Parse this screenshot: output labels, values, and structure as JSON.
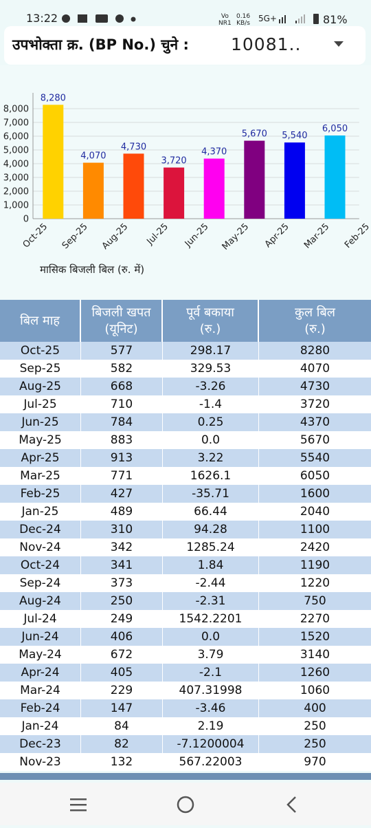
{
  "status_bar": {
    "time": "13:22",
    "network_1": [
      "Vo",
      "NR1"
    ],
    "speed": [
      "0.16",
      "KB/s"
    ],
    "network_2": "5G+",
    "battery": "81%"
  },
  "header": {
    "label": "उपभोक्ता क्र. (BP No.) चुने :",
    "value": "10081.."
  },
  "chart_data": {
    "type": "bar",
    "x_label": "मासिक बिजली बिल (रु. में)",
    "categories": [
      "Oct-25",
      "Sep-25",
      "Aug-25",
      "Jul-25",
      "Jun-25",
      "May-25",
      "Apr-25",
      "Mar-25",
      "Feb-25"
    ],
    "values": [
      8280,
      4070,
      4730,
      3720,
      4370,
      5670,
      5540,
      6050,
      null
    ],
    "value_labels": [
      "8,280",
      "4,070",
      "4,730",
      "3,720",
      "4,370",
      "5,670",
      "5,540",
      "6,050",
      null
    ],
    "colors": [
      "#ffd200",
      "#ff8a00",
      "#ff4a0a",
      "#dc143c",
      "#ff00f0",
      "#800080",
      "#0000f0",
      "#00bdf5"
    ],
    "ylim": [
      0,
      8900
    ],
    "yticks": [
      0,
      {
        "value": 1000,
        "label": "1,000"
      },
      {
        "value": 2000,
        "label": "2,000"
      },
      {
        "value": 3000,
        "label": "3,000"
      },
      {
        "value": 4000,
        "label": "4,000"
      },
      {
        "value": 5000,
        "label": "5,000"
      },
      {
        "value": 6000,
        "label": "6,000"
      },
      {
        "value": 7000,
        "label": "7,000"
      },
      {
        "value": 8000,
        "label": "8,000"
      }
    ],
    "grid": true
  },
  "table": {
    "header": [
      [
        "बिल माह"
      ],
      [
        "बिजली खपत",
        "(यूनिट)"
      ],
      [
        "पूर्व बकाया",
        "(रु.)"
      ],
      [
        "कुल बिल",
        "(रु.)"
      ]
    ],
    "rows": [
      [
        "Oct-25",
        "577",
        "298.17",
        "8280"
      ],
      [
        "Sep-25",
        "582",
        "329.53",
        "4070"
      ],
      [
        "Aug-25",
        "668",
        "-3.26",
        "4730"
      ],
      [
        "Jul-25",
        "710",
        "-1.4",
        "3720"
      ],
      [
        "Jun-25",
        "784",
        "0.25",
        "4370"
      ],
      [
        "May-25",
        "883",
        "0.0",
        "5670"
      ],
      [
        "Apr-25",
        "913",
        "3.22",
        "5540"
      ],
      [
        "Mar-25",
        "771",
        "1626.1",
        "6050"
      ],
      [
        "Feb-25",
        "427",
        "-35.71",
        "1600"
      ],
      [
        "Jan-25",
        "489",
        "66.44",
        "2040"
      ],
      [
        "Dec-24",
        "310",
        "94.28",
        "1100"
      ],
      [
        "Nov-24",
        "342",
        "1285.24",
        "2420"
      ],
      [
        "Oct-24",
        "341",
        "1.84",
        "1190"
      ],
      [
        "Sep-24",
        "373",
        "-2.44",
        "1220"
      ],
      [
        "Aug-24",
        "250",
        "-2.31",
        "750"
      ],
      [
        "Jul-24",
        "249",
        "1542.2201",
        "2270"
      ],
      [
        "Jun-24",
        "406",
        "0.0",
        "1520"
      ],
      [
        "May-24",
        "672",
        "3.79",
        "3140"
      ],
      [
        "Apr-24",
        "405",
        "-2.1",
        "1260"
      ],
      [
        "Mar-24",
        "229",
        "407.31998",
        "1060"
      ],
      [
        "Feb-24",
        "147",
        "-3.46",
        "400"
      ],
      [
        "Jan-24",
        "84",
        "2.19",
        "250"
      ],
      [
        "Dec-23",
        "82",
        "-7.1200004",
        "250"
      ],
      [
        "Nov-23",
        "132",
        "567.22003",
        "970"
      ]
    ]
  }
}
